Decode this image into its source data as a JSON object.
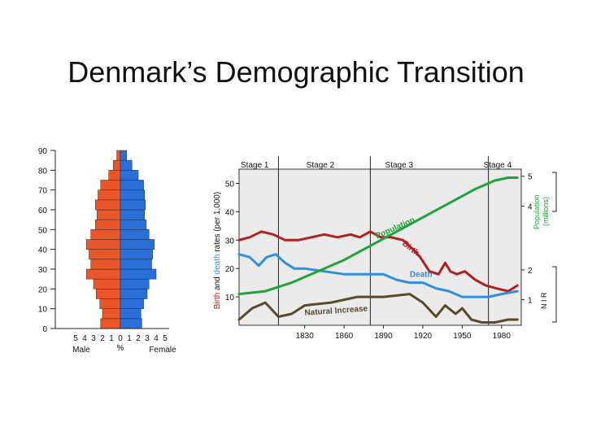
{
  "slide": {
    "title": "Denmark’s Demographic Transition"
  },
  "colors": {
    "male": "#e8562a",
    "female": "#2a6fd8",
    "birth": "#b11f1f",
    "death": "#2d8fe0",
    "population": "#22a33a",
    "natural_increase": "#5a4a2a",
    "plot_bg": "#ebebeb"
  },
  "chart_data": [
    {
      "type": "bar",
      "subtype": "population-pyramid",
      "age_ticks": [
        "0",
        "10",
        "20",
        "30",
        "40",
        "50",
        "60",
        "70",
        "80",
        "90"
      ],
      "x_ticks_male": [
        "5",
        "4",
        "3",
        "2",
        "1",
        "0"
      ],
      "x_ticks_female": [
        "1",
        "2",
        "3",
        "4",
        "5"
      ],
      "xlabel_left": "Male",
      "xlabel_center": "%",
      "xlabel_right": "Female",
      "age_range": [
        0,
        90
      ],
      "pct_range": [
        -5,
        5
      ],
      "bars": [
        {
          "age_from": 0,
          "age_to": 5,
          "male": 2.2,
          "female": 2.4
        },
        {
          "age_from": 5,
          "age_to": 10,
          "male": 2.0,
          "female": 2.3
        },
        {
          "age_from": 10,
          "age_to": 15,
          "male": 2.3,
          "female": 2.6
        },
        {
          "age_from": 15,
          "age_to": 20,
          "male": 2.7,
          "female": 3.0
        },
        {
          "age_from": 20,
          "age_to": 25,
          "male": 3.0,
          "female": 3.2
        },
        {
          "age_from": 25,
          "age_to": 30,
          "male": 3.8,
          "female": 4.0
        },
        {
          "age_from": 30,
          "age_to": 35,
          "male": 3.3,
          "female": 3.5
        },
        {
          "age_from": 35,
          "age_to": 40,
          "male": 3.5,
          "female": 3.6
        },
        {
          "age_from": 40,
          "age_to": 45,
          "male": 3.8,
          "female": 3.8
        },
        {
          "age_from": 45,
          "age_to": 50,
          "male": 3.3,
          "female": 3.2
        },
        {
          "age_from": 50,
          "age_to": 55,
          "male": 2.8,
          "female": 2.9
        },
        {
          "age_from": 55,
          "age_to": 60,
          "male": 2.6,
          "female": 2.7
        },
        {
          "age_from": 60,
          "age_to": 65,
          "male": 2.8,
          "female": 2.8
        },
        {
          "age_from": 65,
          "age_to": 70,
          "male": 2.5,
          "female": 2.7
        },
        {
          "age_from": 70,
          "age_to": 75,
          "male": 2.2,
          "female": 2.6
        },
        {
          "age_from": 75,
          "age_to": 80,
          "male": 1.3,
          "female": 2.0
        },
        {
          "age_from": 80,
          "age_to": 85,
          "male": 0.8,
          "female": 1.3
        },
        {
          "age_from": 85,
          "age_to": 90,
          "male": 0.4,
          "female": 0.7
        }
      ]
    },
    {
      "type": "line",
      "subtype": "demographic-transition",
      "xlim": [
        1780,
        1995
      ],
      "ylim": [
        0,
        55
      ],
      "x_ticks": [
        "1830",
        "1860",
        "1890",
        "1920",
        "1950",
        "1980"
      ],
      "y_ticks": [
        "10",
        "20",
        "30",
        "40",
        "50"
      ],
      "ylabel_parts": [
        "Birth",
        " and ",
        "death",
        " rates (per 1,000)"
      ],
      "right_ticks_pop": [
        "4",
        "5"
      ],
      "right_ticks_nir": [
        "1",
        "2"
      ],
      "right_label_population": "Population",
      "right_label_millions": "(millions)",
      "right_label_nir": "N I R",
      "stages": [
        {
          "label": "Stage 1",
          "x_label": 1780
        },
        {
          "label": "Stage 2",
          "x_label": 1830,
          "boundary": 1810
        },
        {
          "label": "Stage 3",
          "x_label": 1890,
          "boundary": 1880
        },
        {
          "label": "Stage 4",
          "x_label": 1965,
          "boundary": 1970
        }
      ],
      "series": [
        {
          "name": "Birth",
          "key": "birth",
          "x": [
            1780,
            1788,
            1797,
            1806,
            1815,
            1825,
            1835,
            1845,
            1855,
            1865,
            1872,
            1880,
            1888,
            1896,
            1905,
            1912,
            1918,
            1925,
            1932,
            1937,
            1941,
            1946,
            1952,
            1960,
            1968,
            1976,
            1985,
            1992
          ],
          "y": [
            30,
            31,
            33,
            32,
            30,
            30,
            31,
            32,
            31,
            32,
            31,
            33,
            31,
            31,
            30,
            27,
            24,
            19,
            18,
            22,
            19,
            18,
            19,
            16,
            14,
            13,
            12,
            14
          ]
        },
        {
          "name": "Death",
          "key": "death",
          "x": [
            1780,
            1788,
            1795,
            1801,
            1808,
            1815,
            1822,
            1830,
            1845,
            1860,
            1875,
            1890,
            1900,
            1910,
            1920,
            1930,
            1940,
            1950,
            1960,
            1970,
            1980,
            1992
          ],
          "y": [
            25,
            24,
            21,
            24,
            25,
            22,
            20,
            20,
            19,
            18,
            18,
            18,
            16,
            15,
            15,
            13,
            12,
            10,
            10,
            10,
            11,
            12
          ]
        },
        {
          "name": "Population",
          "key": "population",
          "x": [
            1780,
            1800,
            1820,
            1840,
            1860,
            1880,
            1900,
            1920,
            1940,
            1960,
            1975,
            1985,
            1992
          ],
          "y": [
            11,
            12,
            15,
            19,
            23,
            28,
            33,
            38,
            43,
            48,
            51,
            52,
            52
          ]
        },
        {
          "name": "Natural Increase",
          "key": "natural_increase",
          "x": [
            1780,
            1790,
            1800,
            1810,
            1820,
            1830,
            1850,
            1870,
            1890,
            1910,
            1920,
            1930,
            1937,
            1945,
            1950,
            1957,
            1965,
            1975,
            1985,
            1992
          ],
          "y": [
            2,
            6,
            8,
            3,
            4,
            7,
            8,
            10,
            10,
            11,
            8,
            3,
            7,
            4,
            6,
            2,
            1,
            1,
            2,
            2
          ]
        }
      ]
    }
  ]
}
